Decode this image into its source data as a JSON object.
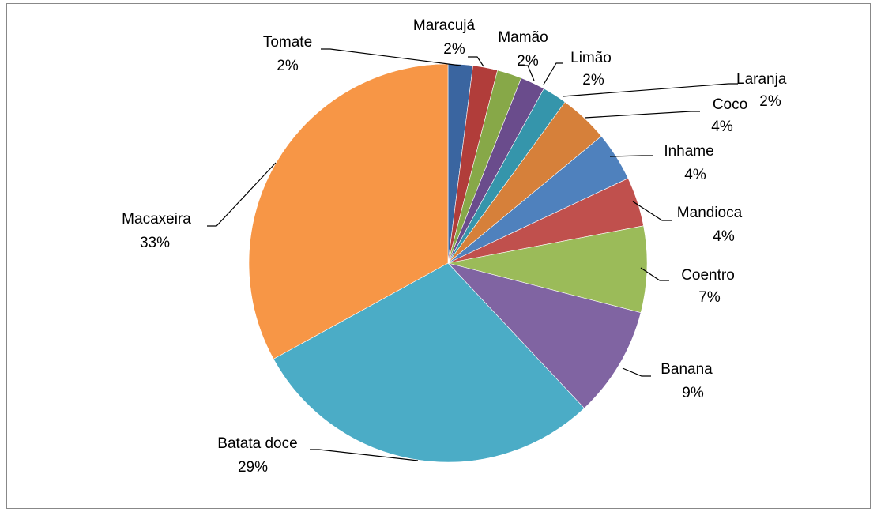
{
  "chart_data": {
    "type": "pie",
    "title": "",
    "slices": [
      {
        "label": "Tomate",
        "value": 2,
        "display": "2%",
        "color": "#3A65A0"
      },
      {
        "label": "Maracujá",
        "value": 2,
        "display": "2%",
        "color": "#B13D3A"
      },
      {
        "label": "Mamão",
        "value": 2,
        "display": "2%",
        "color": "#87A848"
      },
      {
        "label": "Limão",
        "value": 2,
        "display": "2%",
        "color": "#6A4C8C"
      },
      {
        "label": "Laranja",
        "value": 2,
        "display": "2%",
        "color": "#3595AB"
      },
      {
        "label": "Coco",
        "value": 4,
        "display": "4%",
        "color": "#D6803A"
      },
      {
        "label": "Inhame",
        "value": 4,
        "display": "4%",
        "color": "#4F81BD"
      },
      {
        "label": "Mandioca",
        "value": 4,
        "display": "4%",
        "color": "#C0504D"
      },
      {
        "label": "Coentro",
        "value": 7,
        "display": "7%",
        "color": "#9BBB59"
      },
      {
        "label": "Banana",
        "value": 9,
        "display": "9%",
        "color": "#8064A2"
      },
      {
        "label": "Batata doce",
        "value": 29,
        "display": "29%",
        "color": "#4BACC6"
      },
      {
        "label": "Macaxeira",
        "value": 33,
        "display": "33%",
        "color": "#F79646"
      }
    ]
  }
}
